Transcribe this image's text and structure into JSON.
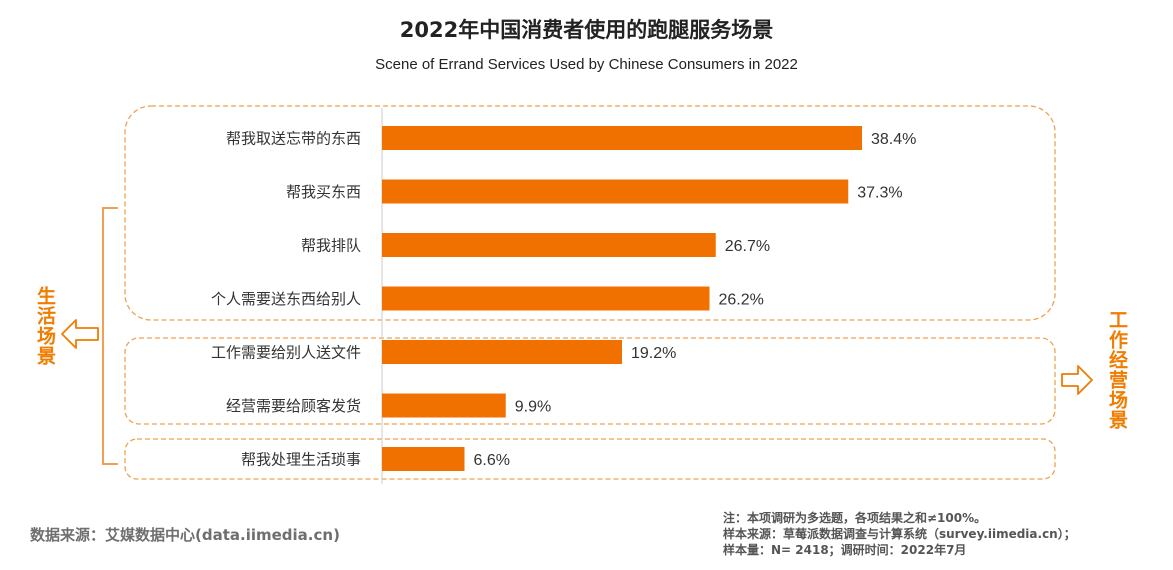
{
  "title": "2022年中国消费者使用的跑腿服务场景",
  "subtitle": "Scene of Errand Services Used by Chinese Consumers in 2022",
  "groups": {
    "life": "生活场景",
    "work": "工作经营场景"
  },
  "source": "数据来源：艾媒数据中心(data.iimedia.cn)",
  "notes": [
    "注：本项调研为多选题，各项结果之和≠100%。",
    "样本来源：草莓派数据调查与计算系统（survey.iimedia.cn）；",
    "样本量：N= 2418；调研时间：2022年7月"
  ],
  "colors": {
    "bar": "#f07000",
    "group_border": "#f0a050",
    "group_label": "#f07c00",
    "bracket": "#f0a050"
  },
  "chart_data": {
    "type": "bar",
    "orientation": "horizontal",
    "categories": [
      "帮我取送忘带的东西",
      "帮我买东西",
      "帮我排队",
      "个人需要送东西给别人",
      "工作需要给别人送文件",
      "经营需要给顾客发货",
      "帮我处理生活琐事"
    ],
    "values": [
      38.4,
      37.3,
      26.7,
      26.2,
      19.2,
      9.9,
      6.6
    ],
    "value_labels": [
      "38.4%",
      "37.3%",
      "26.7%",
      "26.2%",
      "19.2%",
      "9.9%",
      "6.6%"
    ],
    "unit": "%",
    "xlim": [
      0,
      60
    ],
    "grid": false,
    "legend": "none"
  }
}
